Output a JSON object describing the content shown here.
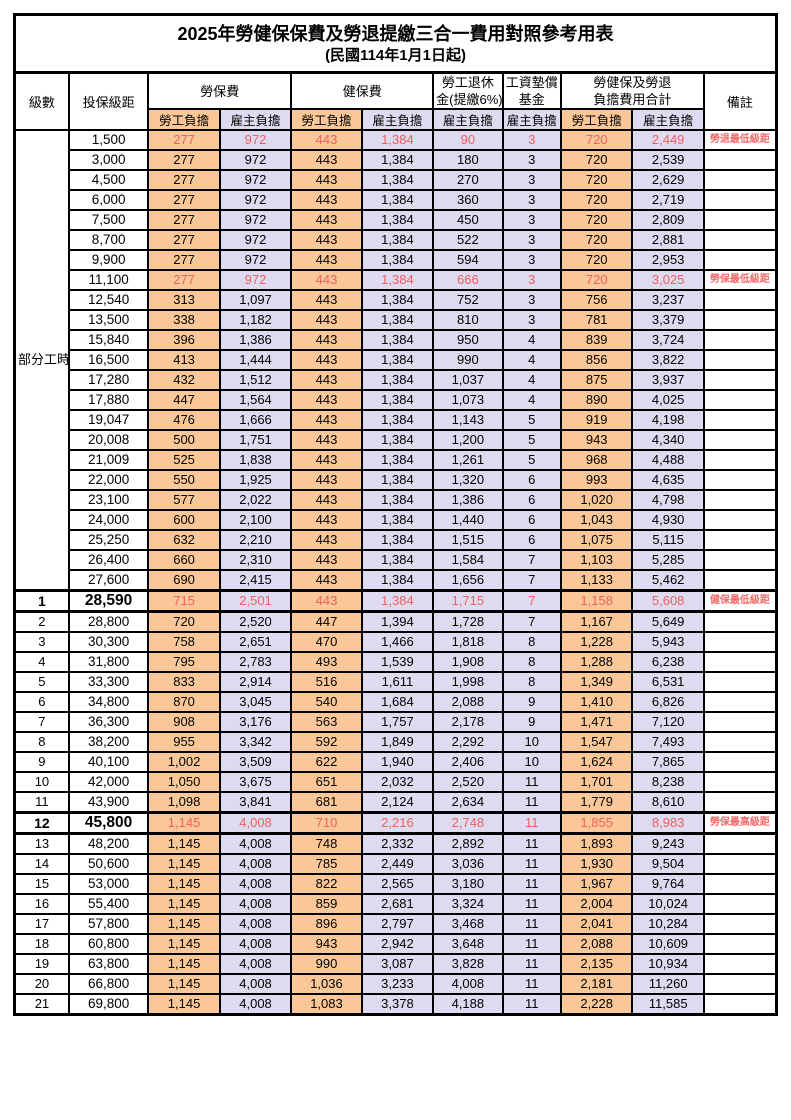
{
  "title": "2025年勞健保保費及勞退提繳三合一費用對照參考用表",
  "subtitle": "(民國114年1月1日起)",
  "colors": {
    "employee_bg": "#FAC898",
    "employer_bg": "#DEDAF0",
    "highlight_red": "#EE615E",
    "border": "#000000"
  },
  "table": {
    "headers": {
      "level": "級數",
      "bracket": "投保級距",
      "labor_fee": "勞保費",
      "health_fee": "健保費",
      "pension_line1": "勞工退休",
      "pension_line2": "金(提繳6%)",
      "wage_fund_line1": "工資墊償",
      "wage_fund_line2": "基金",
      "total_line1": "勞健保及勞退",
      "total_line2": "負擔費用合計",
      "note": "備註",
      "employee": "勞工負擔",
      "employer": "雇主負擔"
    },
    "part_time_label": "部分工時",
    "part_time_rowspan": 23,
    "rows": [
      {
        "level": "",
        "bracket": "1,500",
        "values": [
          "277",
          "972",
          "443",
          "1,384",
          "90",
          "3",
          "720",
          "2,449"
        ],
        "note": "勞退最低級距",
        "red": true,
        "big": false
      },
      {
        "level": "",
        "bracket": "3,000",
        "values": [
          "277",
          "972",
          "443",
          "1,384",
          "180",
          "3",
          "720",
          "2,539"
        ],
        "note": "",
        "red": false,
        "big": false
      },
      {
        "level": "",
        "bracket": "4,500",
        "values": [
          "277",
          "972",
          "443",
          "1,384",
          "270",
          "3",
          "720",
          "2,629"
        ],
        "note": "",
        "red": false,
        "big": false
      },
      {
        "level": "",
        "bracket": "6,000",
        "values": [
          "277",
          "972",
          "443",
          "1,384",
          "360",
          "3",
          "720",
          "2,719"
        ],
        "note": "",
        "red": false,
        "big": false
      },
      {
        "level": "",
        "bracket": "7,500",
        "values": [
          "277",
          "972",
          "443",
          "1,384",
          "450",
          "3",
          "720",
          "2,809"
        ],
        "note": "",
        "red": false,
        "big": false
      },
      {
        "level": "",
        "bracket": "8,700",
        "values": [
          "277",
          "972",
          "443",
          "1,384",
          "522",
          "3",
          "720",
          "2,881"
        ],
        "note": "",
        "red": false,
        "big": false
      },
      {
        "level": "",
        "bracket": "9,900",
        "values": [
          "277",
          "972",
          "443",
          "1,384",
          "594",
          "3",
          "720",
          "2,953"
        ],
        "note": "",
        "red": false,
        "big": false
      },
      {
        "level": "",
        "bracket": "11,100",
        "values": [
          "277",
          "972",
          "443",
          "1,384",
          "666",
          "3",
          "720",
          "3,025"
        ],
        "note": "勞保最低級距",
        "red": true,
        "big": false
      },
      {
        "level": "",
        "bracket": "12,540",
        "values": [
          "313",
          "1,097",
          "443",
          "1,384",
          "752",
          "3",
          "756",
          "3,237"
        ],
        "note": "",
        "red": false,
        "big": false
      },
      {
        "level": "",
        "bracket": "13,500",
        "values": [
          "338",
          "1,182",
          "443",
          "1,384",
          "810",
          "3",
          "781",
          "3,379"
        ],
        "note": "",
        "red": false,
        "big": false
      },
      {
        "level": "",
        "bracket": "15,840",
        "values": [
          "396",
          "1,386",
          "443",
          "1,384",
          "950",
          "4",
          "839",
          "3,724"
        ],
        "note": "",
        "red": false,
        "big": false
      },
      {
        "level": "",
        "bracket": "16,500",
        "values": [
          "413",
          "1,444",
          "443",
          "1,384",
          "990",
          "4",
          "856",
          "3,822"
        ],
        "note": "",
        "red": false,
        "big": false
      },
      {
        "level": "",
        "bracket": "17,280",
        "values": [
          "432",
          "1,512",
          "443",
          "1,384",
          "1,037",
          "4",
          "875",
          "3,937"
        ],
        "note": "",
        "red": false,
        "big": false
      },
      {
        "level": "",
        "bracket": "17,880",
        "values": [
          "447",
          "1,564",
          "443",
          "1,384",
          "1,073",
          "4",
          "890",
          "4,025"
        ],
        "note": "",
        "red": false,
        "big": false
      },
      {
        "level": "",
        "bracket": "19,047",
        "values": [
          "476",
          "1,666",
          "443",
          "1,384",
          "1,143",
          "5",
          "919",
          "4,198"
        ],
        "note": "",
        "red": false,
        "big": false
      },
      {
        "level": "",
        "bracket": "20,008",
        "values": [
          "500",
          "1,751",
          "443",
          "1,384",
          "1,200",
          "5",
          "943",
          "4,340"
        ],
        "note": "",
        "red": false,
        "big": false
      },
      {
        "level": "",
        "bracket": "21,009",
        "values": [
          "525",
          "1,838",
          "443",
          "1,384",
          "1,261",
          "5",
          "968",
          "4,488"
        ],
        "note": "",
        "red": false,
        "big": false
      },
      {
        "level": "",
        "bracket": "22,000",
        "values": [
          "550",
          "1,925",
          "443",
          "1,384",
          "1,320",
          "6",
          "993",
          "4,635"
        ],
        "note": "",
        "red": false,
        "big": false
      },
      {
        "level": "",
        "bracket": "23,100",
        "values": [
          "577",
          "2,022",
          "443",
          "1,384",
          "1,386",
          "6",
          "1,020",
          "4,798"
        ],
        "note": "",
        "red": false,
        "big": false
      },
      {
        "level": "",
        "bracket": "24,000",
        "values": [
          "600",
          "2,100",
          "443",
          "1,384",
          "1,440",
          "6",
          "1,043",
          "4,930"
        ],
        "note": "",
        "red": false,
        "big": false
      },
      {
        "level": "",
        "bracket": "25,250",
        "values": [
          "632",
          "2,210",
          "443",
          "1,384",
          "1,515",
          "6",
          "1,075",
          "5,115"
        ],
        "note": "",
        "red": false,
        "big": false
      },
      {
        "level": "",
        "bracket": "26,400",
        "values": [
          "660",
          "2,310",
          "443",
          "1,384",
          "1,584",
          "7",
          "1,103",
          "5,285"
        ],
        "note": "",
        "red": false,
        "big": false
      },
      {
        "level": "",
        "bracket": "27,600",
        "values": [
          "690",
          "2,415",
          "443",
          "1,384",
          "1,656",
          "7",
          "1,133",
          "5,462"
        ],
        "note": "",
        "red": false,
        "big": false
      },
      {
        "level": "1",
        "bracket": "28,590",
        "values": [
          "715",
          "2,501",
          "443",
          "1,384",
          "1,715",
          "7",
          "1,158",
          "5,608"
        ],
        "note": "健保最低級距",
        "red": true,
        "big": true
      },
      {
        "level": "2",
        "bracket": "28,800",
        "values": [
          "720",
          "2,520",
          "447",
          "1,394",
          "1,728",
          "7",
          "1,167",
          "5,649"
        ],
        "note": "",
        "red": false,
        "big": false
      },
      {
        "level": "3",
        "bracket": "30,300",
        "values": [
          "758",
          "2,651",
          "470",
          "1,466",
          "1,818",
          "8",
          "1,228",
          "5,943"
        ],
        "note": "",
        "red": false,
        "big": false
      },
      {
        "level": "4",
        "bracket": "31,800",
        "values": [
          "795",
          "2,783",
          "493",
          "1,539",
          "1,908",
          "8",
          "1,288",
          "6,238"
        ],
        "note": "",
        "red": false,
        "big": false
      },
      {
        "level": "5",
        "bracket": "33,300",
        "values": [
          "833",
          "2,914",
          "516",
          "1,611",
          "1,998",
          "8",
          "1,349",
          "6,531"
        ],
        "note": "",
        "red": false,
        "big": false
      },
      {
        "level": "6",
        "bracket": "34,800",
        "values": [
          "870",
          "3,045",
          "540",
          "1,684",
          "2,088",
          "9",
          "1,410",
          "6,826"
        ],
        "note": "",
        "red": false,
        "big": false
      },
      {
        "level": "7",
        "bracket": "36,300",
        "values": [
          "908",
          "3,176",
          "563",
          "1,757",
          "2,178",
          "9",
          "1,471",
          "7,120"
        ],
        "note": "",
        "red": false,
        "big": false
      },
      {
        "level": "8",
        "bracket": "38,200",
        "values": [
          "955",
          "3,342",
          "592",
          "1,849",
          "2,292",
          "10",
          "1,547",
          "7,493"
        ],
        "note": "",
        "red": false,
        "big": false
      },
      {
        "level": "9",
        "bracket": "40,100",
        "values": [
          "1,002",
          "3,509",
          "622",
          "1,940",
          "2,406",
          "10",
          "1,624",
          "7,865"
        ],
        "note": "",
        "red": false,
        "big": false
      },
      {
        "level": "10",
        "bracket": "42,000",
        "values": [
          "1,050",
          "3,675",
          "651",
          "2,032",
          "2,520",
          "11",
          "1,701",
          "8,238"
        ],
        "note": "",
        "red": false,
        "big": false
      },
      {
        "level": "11",
        "bracket": "43,900",
        "values": [
          "1,098",
          "3,841",
          "681",
          "2,124",
          "2,634",
          "11",
          "1,779",
          "8,610"
        ],
        "note": "",
        "red": false,
        "big": false
      },
      {
        "level": "12",
        "bracket": "45,800",
        "values": [
          "1,145",
          "4,008",
          "710",
          "2,216",
          "2,748",
          "11",
          "1,855",
          "8,983"
        ],
        "note": "勞保最高級距",
        "red": true,
        "big": true
      },
      {
        "level": "13",
        "bracket": "48,200",
        "values": [
          "1,145",
          "4,008",
          "748",
          "2,332",
          "2,892",
          "11",
          "1,893",
          "9,243"
        ],
        "note": "",
        "red": false,
        "big": false
      },
      {
        "level": "14",
        "bracket": "50,600",
        "values": [
          "1,145",
          "4,008",
          "785",
          "2,449",
          "3,036",
          "11",
          "1,930",
          "9,504"
        ],
        "note": "",
        "red": false,
        "big": false
      },
      {
        "level": "15",
        "bracket": "53,000",
        "values": [
          "1,145",
          "4,008",
          "822",
          "2,565",
          "3,180",
          "11",
          "1,967",
          "9,764"
        ],
        "note": "",
        "red": false,
        "big": false
      },
      {
        "level": "16",
        "bracket": "55,400",
        "values": [
          "1,145",
          "4,008",
          "859",
          "2,681",
          "3,324",
          "11",
          "2,004",
          "10,024"
        ],
        "note": "",
        "red": false,
        "big": false
      },
      {
        "level": "17",
        "bracket": "57,800",
        "values": [
          "1,145",
          "4,008",
          "896",
          "2,797",
          "3,468",
          "11",
          "2,041",
          "10,284"
        ],
        "note": "",
        "red": false,
        "big": false
      },
      {
        "level": "18",
        "bracket": "60,800",
        "values": [
          "1,145",
          "4,008",
          "943",
          "2,942",
          "3,648",
          "11",
          "2,088",
          "10,609"
        ],
        "note": "",
        "red": false,
        "big": false
      },
      {
        "level": "19",
        "bracket": "63,800",
        "values": [
          "1,145",
          "4,008",
          "990",
          "3,087",
          "3,828",
          "11",
          "2,135",
          "10,934"
        ],
        "note": "",
        "red": false,
        "big": false
      },
      {
        "level": "20",
        "bracket": "66,800",
        "values": [
          "1,145",
          "4,008",
          "1,036",
          "3,233",
          "4,008",
          "11",
          "2,181",
          "11,260"
        ],
        "note": "",
        "red": false,
        "big": false
      },
      {
        "level": "21",
        "bracket": "69,800",
        "values": [
          "1,145",
          "4,008",
          "1,083",
          "3,378",
          "4,188",
          "11",
          "2,228",
          "11,585"
        ],
        "note": "",
        "red": false,
        "big": false
      }
    ]
  }
}
